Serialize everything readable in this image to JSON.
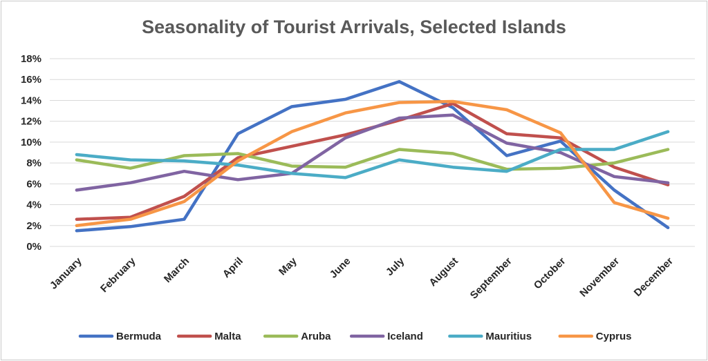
{
  "chart_data": {
    "type": "line",
    "title": "Seasonality of Tourist Arrivals, Selected Islands",
    "categories": [
      "January",
      "February",
      "March",
      "April",
      "May",
      "June",
      "July",
      "August",
      "September",
      "October",
      "November",
      "December"
    ],
    "y_ticks": [
      "0%",
      "2%",
      "4%",
      "6%",
      "8%",
      "10%",
      "12%",
      "14%",
      "16%",
      "18%"
    ],
    "ylim": [
      0,
      18
    ],
    "y_unit": "%",
    "grid": true,
    "legend_position": "bottom",
    "series": [
      {
        "name": "Bermuda",
        "color": "#4472C4",
        "values": [
          1.5,
          1.9,
          2.6,
          10.8,
          13.4,
          14.1,
          15.8,
          13.3,
          8.7,
          10.1,
          5.4,
          1.8
        ]
      },
      {
        "name": "Malta",
        "color": "#C0504D",
        "values": [
          2.6,
          2.8,
          4.8,
          8.5,
          9.6,
          10.7,
          12.1,
          13.7,
          10.8,
          10.4,
          7.6,
          5.9
        ]
      },
      {
        "name": "Aruba",
        "color": "#9BBB59",
        "values": [
          8.3,
          7.5,
          8.7,
          8.9,
          7.7,
          7.6,
          9.3,
          8.9,
          7.4,
          7.5,
          8.0,
          9.3
        ]
      },
      {
        "name": "Iceland",
        "color": "#8064A2",
        "values": [
          5.4,
          6.1,
          7.2,
          6.4,
          7.0,
          10.4,
          12.3,
          12.6,
          9.9,
          9.0,
          6.7,
          6.1
        ]
      },
      {
        "name": "Mauritius",
        "color": "#4BACC6",
        "values": [
          8.8,
          8.3,
          8.2,
          7.8,
          7.0,
          6.6,
          8.3,
          7.6,
          7.2,
          9.3,
          9.3,
          11.0
        ]
      },
      {
        "name": "Cyprus",
        "color": "#F79646",
        "values": [
          2.0,
          2.6,
          4.3,
          8.2,
          11.0,
          12.8,
          13.8,
          13.9,
          13.1,
          10.9,
          4.2,
          2.7
        ]
      }
    ]
  }
}
